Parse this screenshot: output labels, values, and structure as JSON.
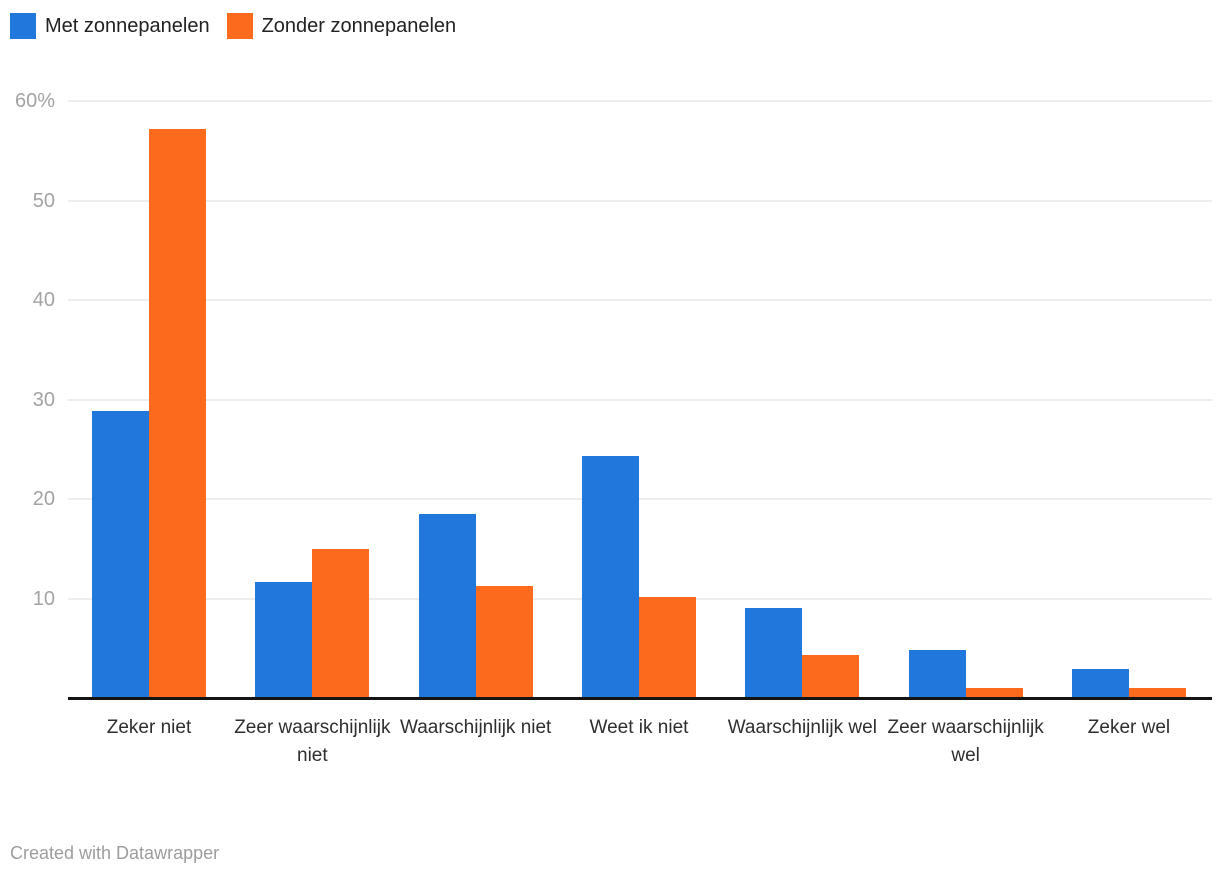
{
  "legend": {
    "items": [
      {
        "label": "Met zonnepanelen",
        "color": "#2277dd"
      },
      {
        "label": "Zonder zonnepanelen",
        "color": "#fb6a1d"
      }
    ]
  },
  "footer": {
    "text": "Created with Datawrapper"
  },
  "colors": {
    "series_blue": "#2277dd",
    "series_orange": "#fb6a1d",
    "gridline": "#ededed",
    "baseline": "#141414",
    "y_tick_text": "#a3a3a3",
    "x_label_text": "#2e2e2e",
    "footer_text": "#9d9d9d",
    "background": "#ffffff"
  },
  "chart_data": {
    "type": "bar",
    "categories": [
      "Zeker niet",
      "Zeer waarschijnlijk niet",
      "Waarschijnlijk niet",
      "Weet ik niet",
      "Waarschijnlijk wel",
      "Zeer waarschijnlijk wel",
      "Zeker wel"
    ],
    "series": [
      {
        "name": "Met zonnepanelen",
        "color": "#2277dd",
        "values": [
          28.7,
          11.6,
          18.4,
          24.2,
          9.0,
          4.7,
          2.8
        ]
      },
      {
        "name": "Zonder zonnepanelen",
        "color": "#fb6a1d",
        "values": [
          57.1,
          14.9,
          11.2,
          10.1,
          4.2,
          0.9,
          0.9
        ]
      }
    ],
    "xlabel": "",
    "ylabel": "",
    "ylim": [
      0,
      60
    ],
    "y_ticks": [
      60,
      50,
      40,
      30,
      20,
      10
    ],
    "y_tick_labels": [
      "60%",
      "50",
      "40",
      "30",
      "20",
      "10"
    ],
    "grid": true,
    "legend_position": "top-left",
    "value_unit": "percent"
  }
}
